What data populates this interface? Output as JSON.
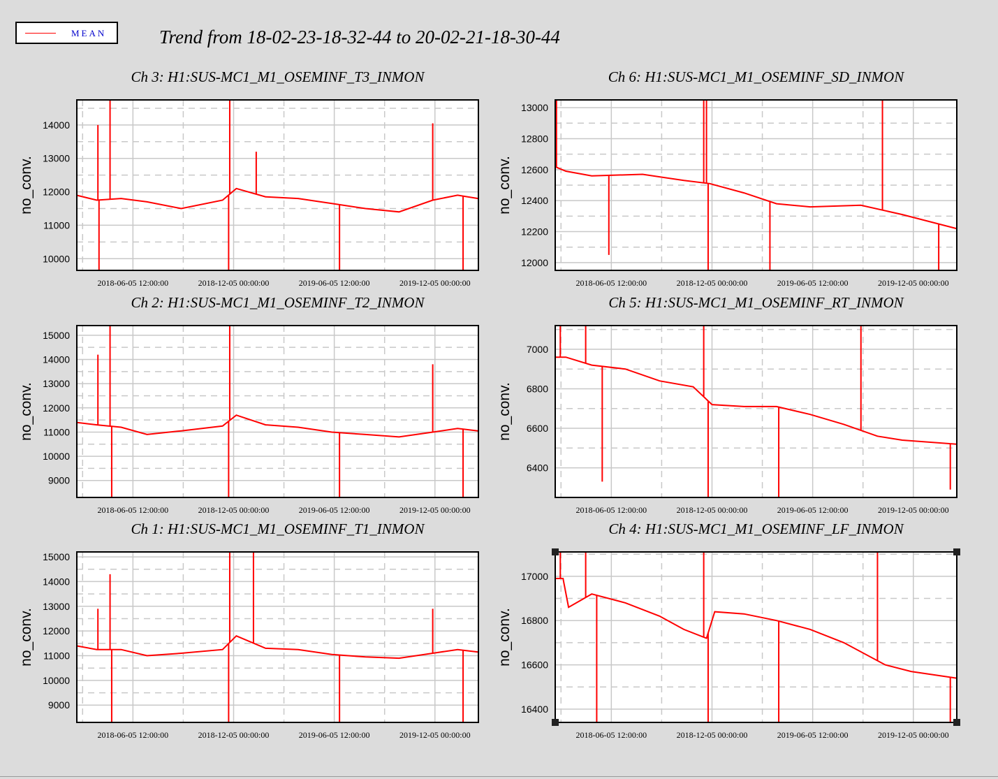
{
  "header": {
    "title": "Trend from 18-02-23-18-32-44 to 20-02-21-18-30-44",
    "legend_label": "MEAN"
  },
  "colors": {
    "series": "#ff0000",
    "background": "#dcdcdc",
    "plot_background": "#ffffff",
    "grid": "#c8c8c8",
    "legend_text": "#0000cc"
  },
  "chart_data": [
    {
      "type": "line",
      "title": "Ch 3: H1:SUS-MC1_M1_OSEMINF_T3_INMON",
      "ylabel": "no_conv.",
      "xlabel": "",
      "x_range": [
        "2018-02-23 18:32:44",
        "2020-02-21 18:30:44"
      ],
      "ylim": [
        9650,
        14750
      ],
      "yticks": [
        10000,
        11000,
        12000,
        13000,
        14000
      ],
      "xticks": [
        "2018-06-05 12:00:00",
        "2018-12-05 00:00:00",
        "2019-06-05 12:00:00",
        "2019-12-05 00:00:00"
      ],
      "series": [
        {
          "name": "MEAN",
          "x": [
            "2018-02-23",
            "2018-04-01",
            "2018-05-15",
            "2018-07-01",
            "2018-09-01",
            "2018-11-15",
            "2018-12-10",
            "2019-02-01",
            "2019-04-01",
            "2019-06-01",
            "2019-08-01",
            "2019-10-01",
            "2019-12-01",
            "2020-01-15",
            "2020-02-21"
          ],
          "y": [
            11900,
            11750,
            11800,
            11700,
            11500,
            11750,
            12100,
            11850,
            11800,
            11650,
            11500,
            11400,
            11750,
            11900,
            11800
          ]
        }
      ],
      "spikes": [
        {
          "x": "2018-04-03",
          "y": 14000
        },
        {
          "x": "2018-04-25",
          "y": 14750
        },
        {
          "x": "2018-11-28",
          "y": 14750
        },
        {
          "x": "2019-01-15",
          "y": 13200
        },
        {
          "x": "2019-12-01",
          "y": 14050
        },
        {
          "x": "2018-04-05",
          "y": 9650
        },
        {
          "x": "2018-11-26",
          "y": 9650
        },
        {
          "x": "2019-06-15",
          "y": 9650
        },
        {
          "x": "2020-01-25",
          "y": 9650
        }
      ],
      "grid": true
    },
    {
      "type": "line",
      "title": "Ch 6: H1:SUS-MC1_M1_OSEMINF_SD_INMON",
      "ylabel": "no_conv.",
      "xlabel": "",
      "x_range": [
        "2018-02-23 18:32:44",
        "2020-02-21 18:30:44"
      ],
      "ylim": [
        11950,
        13050
      ],
      "yticks": [
        12000,
        12200,
        12400,
        12600,
        12800,
        13000
      ],
      "xticks": [
        "2018-06-05 12:00:00",
        "2018-12-05 00:00:00",
        "2019-06-05 12:00:00",
        "2019-12-05 00:00:00"
      ],
      "series": [
        {
          "name": "MEAN",
          "x": [
            "2018-02-23",
            "2018-03-15",
            "2018-05-01",
            "2018-08-01",
            "2018-10-15",
            "2018-12-01",
            "2019-02-01",
            "2019-04-01",
            "2019-06-01",
            "2019-09-01",
            "2019-11-15",
            "2020-02-21"
          ],
          "y": [
            12620,
            12590,
            12560,
            12570,
            12530,
            12510,
            12450,
            12380,
            12360,
            12370,
            12310,
            12220
          ]
        }
      ],
      "spikes": [
        {
          "x": "2018-02-26",
          "y": 13050
        },
        {
          "x": "2018-11-20",
          "y": 13050
        },
        {
          "x": "2018-11-25",
          "y": 13050
        },
        {
          "x": "2019-10-10",
          "y": 13050
        },
        {
          "x": "2018-06-01",
          "y": 12050
        },
        {
          "x": "2018-11-28",
          "y": 11950
        },
        {
          "x": "2019-03-20",
          "y": 11950
        },
        {
          "x": "2020-01-20",
          "y": 11950
        }
      ],
      "grid": true
    },
    {
      "type": "line",
      "title": "Ch 2: H1:SUS-MC1_M1_OSEMINF_T2_INMON",
      "ylabel": "no_conv.",
      "xlabel": "",
      "x_range": [
        "2018-02-23 18:32:44",
        "2020-02-21 18:30:44"
      ],
      "ylim": [
        8300,
        15400
      ],
      "yticks": [
        9000,
        10000,
        11000,
        12000,
        13000,
        14000,
        15000
      ],
      "xticks": [
        "2018-06-05 12:00:00",
        "2018-12-05 00:00:00",
        "2019-06-05 12:00:00",
        "2019-12-05 00:00:00"
      ],
      "series": [
        {
          "name": "MEAN",
          "x": [
            "2018-02-23",
            "2018-04-01",
            "2018-05-15",
            "2018-07-01",
            "2018-09-01",
            "2018-11-15",
            "2018-12-10",
            "2019-02-01",
            "2019-04-01",
            "2019-06-01",
            "2019-08-01",
            "2019-10-01",
            "2019-12-01",
            "2020-01-15",
            "2020-02-21"
          ],
          "y": [
            11400,
            11300,
            11200,
            10900,
            11050,
            11250,
            11700,
            11300,
            11200,
            11000,
            10900,
            10800,
            11000,
            11150,
            11050
          ]
        }
      ],
      "spikes": [
        {
          "x": "2018-04-03",
          "y": 14200
        },
        {
          "x": "2018-04-25",
          "y": 15400
        },
        {
          "x": "2018-11-28",
          "y": 15400
        },
        {
          "x": "2019-12-01",
          "y": 13800
        },
        {
          "x": "2018-04-28",
          "y": 8300
        },
        {
          "x": "2018-11-26",
          "y": 8300
        },
        {
          "x": "2019-06-15",
          "y": 8300
        },
        {
          "x": "2020-01-25",
          "y": 8300
        }
      ],
      "grid": true
    },
    {
      "type": "line",
      "title": "Ch 5: H1:SUS-MC1_M1_OSEMINF_RT_INMON",
      "ylabel": "no_conv.",
      "xlabel": "",
      "x_range": [
        "2018-02-23 18:32:44",
        "2020-02-21 18:30:44"
      ],
      "ylim": [
        6250,
        7120
      ],
      "yticks": [
        6400,
        6600,
        6800,
        7000
      ],
      "xticks": [
        "2018-06-05 12:00:00",
        "2018-12-05 00:00:00",
        "2019-06-05 12:00:00",
        "2019-12-05 00:00:00"
      ],
      "series": [
        {
          "name": "MEAN",
          "x": [
            "2018-02-23",
            "2018-03-15",
            "2018-05-01",
            "2018-07-01",
            "2018-09-01",
            "2018-11-01",
            "2018-12-05",
            "2019-02-01",
            "2019-04-01",
            "2019-06-01",
            "2019-08-01",
            "2019-10-01",
            "2019-11-15",
            "2020-02-21"
          ],
          "y": [
            6960,
            6960,
            6920,
            6900,
            6840,
            6810,
            6720,
            6710,
            6710,
            6670,
            6620,
            6560,
            6540,
            6520
          ]
        }
      ],
      "spikes": [
        {
          "x": "2018-03-05",
          "y": 7120
        },
        {
          "x": "2018-04-20",
          "y": 7120
        },
        {
          "x": "2018-11-20",
          "y": 7120
        },
        {
          "x": "2019-09-01",
          "y": 7120
        },
        {
          "x": "2018-05-20",
          "y": 6330
        },
        {
          "x": "2018-11-28",
          "y": 6250
        },
        {
          "x": "2019-04-05",
          "y": 6250
        },
        {
          "x": "2020-02-10",
          "y": 6290
        }
      ],
      "grid": true
    },
    {
      "type": "line",
      "title": "Ch 1: H1:SUS-MC1_M1_OSEMINF_T1_INMON",
      "ylabel": "no_conv.",
      "xlabel": "",
      "x_range": [
        "2018-02-23 18:32:44",
        "2020-02-21 18:30:44"
      ],
      "ylim": [
        8300,
        15200
      ],
      "yticks": [
        9000,
        10000,
        11000,
        12000,
        13000,
        14000,
        15000
      ],
      "xticks": [
        "2018-06-05 12:00:00",
        "2018-12-05 00:00:00",
        "2019-06-05 12:00:00",
        "2019-12-05 00:00:00"
      ],
      "series": [
        {
          "name": "MEAN",
          "x": [
            "2018-02-23",
            "2018-04-01",
            "2018-05-15",
            "2018-07-01",
            "2018-09-01",
            "2018-11-15",
            "2018-12-10",
            "2019-02-01",
            "2019-04-01",
            "2019-06-01",
            "2019-08-01",
            "2019-10-01",
            "2019-12-01",
            "2020-01-15",
            "2020-02-21"
          ],
          "y": [
            11400,
            11250,
            11250,
            11000,
            11100,
            11250,
            11800,
            11300,
            11250,
            11050,
            10950,
            10900,
            11100,
            11250,
            11150
          ]
        }
      ],
      "spikes": [
        {
          "x": "2018-04-03",
          "y": 12900
        },
        {
          "x": "2018-04-25",
          "y": 14300
        },
        {
          "x": "2018-11-28",
          "y": 15200
        },
        {
          "x": "2019-01-10",
          "y": 15200
        },
        {
          "x": "2019-12-01",
          "y": 12900
        },
        {
          "x": "2018-04-28",
          "y": 8300
        },
        {
          "x": "2018-11-26",
          "y": 8300
        },
        {
          "x": "2019-06-15",
          "y": 8300
        },
        {
          "x": "2020-01-25",
          "y": 8300
        }
      ],
      "grid": true
    },
    {
      "type": "line",
      "title": "Ch 4: H1:SUS-MC1_M1_OSEMINF_LF_INMON",
      "ylabel": "no_conv.",
      "xlabel": "",
      "x_range": [
        "2018-02-23 18:32:44",
        "2020-02-21 18:30:44"
      ],
      "ylim": [
        16340,
        17110
      ],
      "yticks": [
        16400,
        16600,
        16800,
        17000
      ],
      "xticks": [
        "2018-06-05 12:00:00",
        "2018-12-05 00:00:00",
        "2019-06-05 12:00:00",
        "2019-12-05 00:00:00"
      ],
      "series": [
        {
          "name": "MEAN",
          "x": [
            "2018-02-23",
            "2018-03-10",
            "2018-03-20",
            "2018-05-01",
            "2018-07-01",
            "2018-09-01",
            "2018-10-15",
            "2018-11-25",
            "2018-12-10",
            "2019-02-01",
            "2019-04-01",
            "2019-06-01",
            "2019-08-01",
            "2019-10-15",
            "2019-12-01",
            "2020-02-21"
          ],
          "y": [
            16990,
            16990,
            16860,
            16920,
            16880,
            16820,
            16760,
            16720,
            16840,
            16830,
            16800,
            16760,
            16700,
            16600,
            16570,
            16540
          ]
        }
      ],
      "spikes": [
        {
          "x": "2018-03-05",
          "y": 17110
        },
        {
          "x": "2018-04-20",
          "y": 17110
        },
        {
          "x": "2018-11-20",
          "y": 17110
        },
        {
          "x": "2019-10-01",
          "y": 17110
        },
        {
          "x": "2018-05-10",
          "y": 16340
        },
        {
          "x": "2018-11-28",
          "y": 16340
        },
        {
          "x": "2019-04-05",
          "y": 16340
        },
        {
          "x": "2020-02-10",
          "y": 16340
        }
      ],
      "grid": true
    }
  ]
}
